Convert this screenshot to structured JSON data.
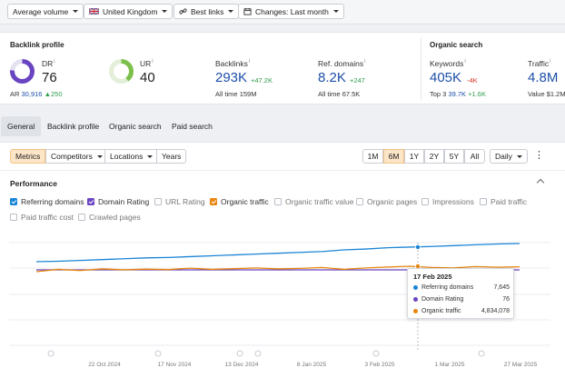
{
  "filters": {
    "volume": "Average volume",
    "country": "United Kingdom",
    "links": "Best links",
    "changes": "Changes: Last month"
  },
  "backlink_profile": {
    "title": "Backlink profile",
    "dr": {
      "label": "DR",
      "value": "76",
      "ar_label": "AR",
      "ar_value": "30,916",
      "ar_change": "250",
      "ring_fraction": 0.76
    },
    "ur": {
      "label": "UR",
      "value": "40",
      "ring_fraction": 0.4
    },
    "backlinks": {
      "label": "Backlinks",
      "value": "293K",
      "change": "+47.2K",
      "alltime_label": "All time",
      "alltime_value": "159M"
    },
    "ref_domains": {
      "label": "Ref. domains",
      "value": "8.2K",
      "change": "+247",
      "alltime_label": "All time",
      "alltime_value": "67.5K"
    }
  },
  "organic_search": {
    "title": "Organic search",
    "keywords": {
      "label": "Keywords",
      "value": "405K",
      "change": "-4K",
      "top3_label": "Top 3",
      "top3_value": "39.7K",
      "top3_change": "+1.6K"
    },
    "traffic": {
      "label": "Traffic",
      "value": "4.8M",
      "value_label": "Value",
      "value_value": "$1.2M"
    }
  },
  "tabs": [
    "General",
    "Backlink profile",
    "Organic search",
    "Paid search"
  ],
  "metric_tabs": [
    "Metrics",
    "Competitors",
    "Locations",
    "Years"
  ],
  "ranges": [
    "1M",
    "6M",
    "1Y",
    "2Y",
    "5Y",
    "All"
  ],
  "interval": "Daily",
  "performance_title": "Performance",
  "checkboxes": [
    {
      "label": "Referring domains",
      "checked": true,
      "color": "#1a85d6"
    },
    {
      "label": "Domain Rating",
      "checked": true,
      "color": "#6a45c2"
    },
    {
      "label": "URL Rating",
      "checked": false
    },
    {
      "label": "Organic traffic",
      "checked": true,
      "color": "#e8860e"
    },
    {
      "label": "Organic traffic value",
      "checked": false
    },
    {
      "label": "Organic pages",
      "checked": false
    },
    {
      "label": "Impressions",
      "checked": false
    },
    {
      "label": "Paid traffic",
      "checked": false
    },
    {
      "label": "Paid traffic cost",
      "checked": false
    },
    {
      "label": "Crawled pages",
      "checked": false
    }
  ],
  "chart_data": {
    "type": "line",
    "x_ticks": [
      "22 Oct 2024",
      "17 Nov 2024",
      "13 Dec 2024",
      "8 Jan 2025",
      "3 Feb 2025",
      "1 Mar 2025",
      "27 Mar 2025"
    ],
    "series": [
      {
        "name": "Referring domains",
        "color": "#1a85d6",
        "values": [
          7300,
          7310,
          7330,
          7350,
          7370,
          7390,
          7400,
          7420,
          7440,
          7460,
          7480,
          7500,
          7520,
          7540,
          7580,
          7600,
          7630,
          7645,
          7660,
          7680,
          7700,
          7720,
          7730
        ]
      },
      {
        "name": "Domain Rating",
        "color": "#6a45c2",
        "values": [
          76,
          76,
          76,
          76,
          76,
          76,
          76,
          76,
          76,
          76,
          76,
          76,
          76,
          76,
          76,
          76,
          76,
          76,
          76,
          76,
          76,
          76,
          76
        ]
      },
      {
        "name": "Organic traffic",
        "color": "#e8860e",
        "values": [
          4600000,
          4700000,
          4650000,
          4720000,
          4680000,
          4710000,
          4690000,
          4750000,
          4700000,
          4730000,
          4760000,
          4720000,
          4740000,
          4780000,
          4700000,
          4760000,
          4800000,
          4834078,
          4780000,
          4760000,
          4820000,
          4790000,
          4810000
        ]
      }
    ]
  },
  "tooltip": {
    "date": "17 Feb 2025",
    "rows": [
      {
        "label": "Referring domains",
        "value": "7,645",
        "color": "#1a85d6"
      },
      {
        "label": "Domain Rating",
        "value": "76",
        "color": "#6a45c2"
      },
      {
        "label": "Organic traffic",
        "value": "4,834,078",
        "color": "#e8860e"
      }
    ]
  }
}
